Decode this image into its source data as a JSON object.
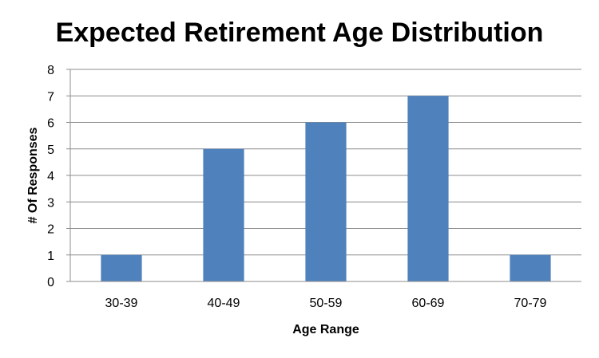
{
  "chart_data": {
    "type": "bar",
    "title": "Expected Retirement Age Distribution",
    "xlabel": "Age Range",
    "ylabel": "# Of Responses",
    "categories": [
      "30-39",
      "40-49",
      "50-59",
      "60-69",
      "70-79"
    ],
    "values": [
      1,
      5,
      6,
      7,
      1
    ],
    "ylim": [
      0,
      8
    ],
    "yticks": [
      "0",
      "1",
      "2",
      "3",
      "4",
      "5",
      "6",
      "7",
      "8"
    ],
    "grid": true,
    "legend": "none",
    "bar_color": "#4f81bd"
  }
}
